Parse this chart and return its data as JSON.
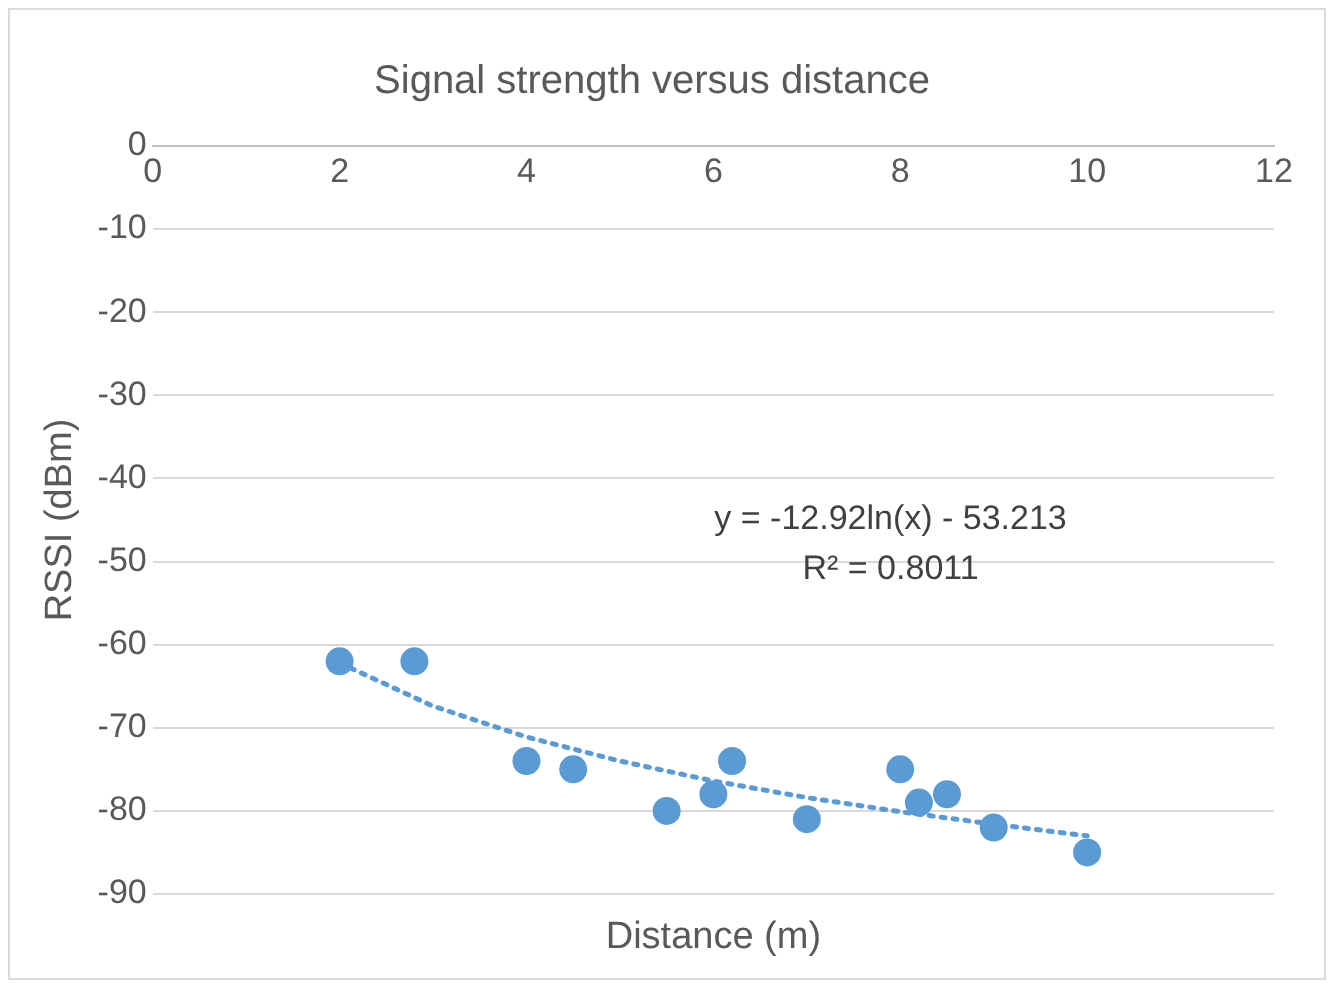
{
  "chart_data": {
    "type": "scatter",
    "title": "Signal strength versus distance",
    "xlabel": "Distance (m)",
    "ylabel": "RSSI (dBm)",
    "series": [
      {
        "color": "#5b9bd5",
        "marker": "circle",
        "x": [
          2,
          2.8,
          4,
          4.5,
          5.5,
          6,
          6.2,
          7,
          8,
          8.2,
          8.5,
          9,
          10
        ],
        "values": [
          -62,
          -62,
          -74,
          -75,
          -80,
          -78,
          -74,
          -81,
          -75,
          -79,
          -78,
          -82,
          -85
        ]
      },
      {
        "type": "line",
        "color": "#5b9bd5",
        "marker": "none",
        "line_style": "dotted",
        "x": [
          2,
          3,
          4,
          5,
          6,
          7,
          8,
          9,
          10
        ],
        "values": [
          -62.2,
          -67.4,
          -71.1,
          -74.0,
          -76.4,
          -78.4,
          -80.1,
          -81.6,
          -83.0
        ]
      }
    ],
    "annotations": [
      "y = -12.92ln(x) - 53.213",
      "R² = 0.8011"
    ],
    "xlim": [
      0,
      12
    ],
    "xticks": [
      0,
      2,
      4,
      6,
      8,
      10,
      12
    ],
    "ylim": [
      -90,
      0
    ],
    "yticks": [
      0,
      -10,
      -20,
      -30,
      -40,
      -50,
      -60,
      -70,
      -80,
      -90
    ],
    "grid": "y",
    "legend": false
  }
}
